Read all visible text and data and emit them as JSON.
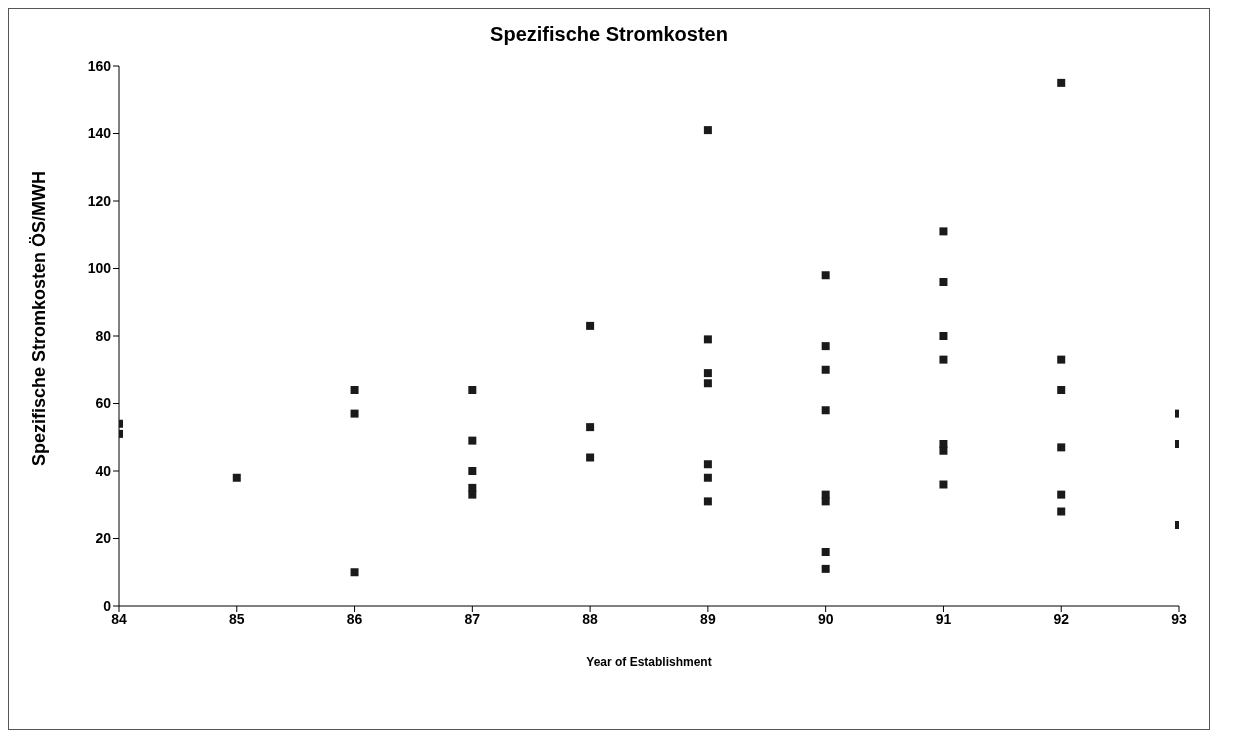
{
  "chart_data": {
    "type": "scatter",
    "title": "Spezifische Stromkosten",
    "xlabel": "Year of Establishment",
    "ylabel": "Spezifische Stromkosten ÖS/MWH",
    "x": [
      84,
      84,
      85,
      86,
      86,
      86,
      87,
      87,
      87,
      87,
      87,
      88,
      88,
      88,
      89,
      89,
      89,
      89,
      89,
      89,
      89,
      90,
      90,
      90,
      90,
      90,
      90,
      90,
      90,
      91,
      91,
      91,
      91,
      91,
      91,
      91,
      92,
      92,
      92,
      92,
      92,
      92,
      93,
      93,
      93
    ],
    "values": [
      51,
      54,
      38,
      64,
      57,
      10,
      64,
      49,
      40,
      35,
      33,
      83,
      53,
      44,
      141,
      79,
      69,
      66,
      42,
      38,
      31,
      98,
      77,
      70,
      58,
      33,
      31,
      16,
      11,
      111,
      96,
      80,
      73,
      48,
      46,
      36,
      155,
      73,
      64,
      47,
      33,
      28,
      57,
      48,
      24
    ],
    "color": "#1a1a1a",
    "marker": "square",
    "grid": false,
    "legend": false,
    "xlim": [
      84,
      93
    ],
    "xticks": [
      84,
      85,
      86,
      87,
      88,
      89,
      90,
      91,
      92,
      93
    ],
    "ylim": [
      0,
      160
    ],
    "yticks": [
      0,
      20,
      40,
      60,
      80,
      100,
      120,
      140,
      160
    ]
  }
}
